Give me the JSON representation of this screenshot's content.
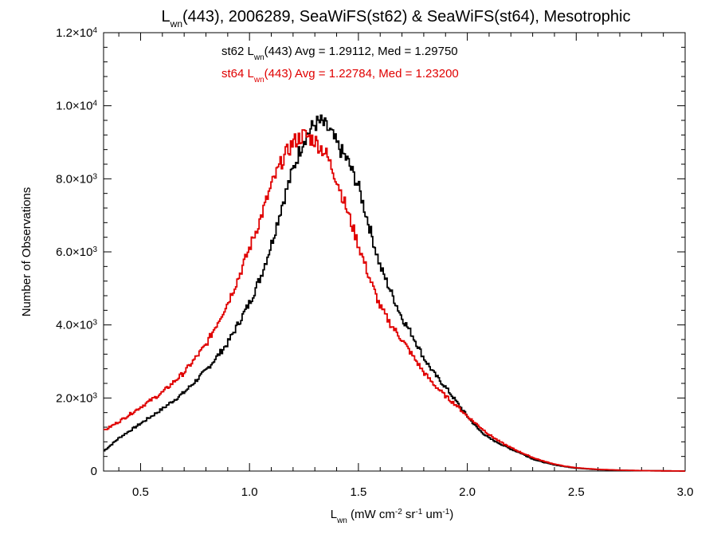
{
  "chart_data": {
    "type": "line",
    "step": true,
    "title_parts": {
      "main": "L",
      "sub": "wn",
      "rest": "(443), 2006289, SeaWiFS(st62) & SeaWiFS(st64), Mesotrophic"
    },
    "xlabel_parts": {
      "main": "L",
      "sub": "wn",
      "rest1": " (mW cm",
      "sup1": "-2",
      "rest2": " sr",
      "sup2": "-1",
      "rest3": " um",
      "sup3": "-1",
      "rest4": ")"
    },
    "ylabel": "Number of Observations",
    "xlim": [
      0.33,
      3.0
    ],
    "ylim": [
      0,
      12000
    ],
    "xticks": [
      {
        "value": 0.5,
        "label": "0.5"
      },
      {
        "value": 1.0,
        "label": "1.0"
      },
      {
        "value": 1.5,
        "label": "1.5"
      },
      {
        "value": 2.0,
        "label": "2.0"
      },
      {
        "value": 2.5,
        "label": "2.5"
      },
      {
        "value": 3.0,
        "label": "3.0"
      }
    ],
    "yticks": [
      {
        "value": 0,
        "mant": "0",
        "exp": ""
      },
      {
        "value": 2000,
        "mant": "2.0×10",
        "exp": "3"
      },
      {
        "value": 4000,
        "mant": "4.0×10",
        "exp": "3"
      },
      {
        "value": 6000,
        "mant": "6.0×10",
        "exp": "3"
      },
      {
        "value": 8000,
        "mant": "8.0×10",
        "exp": "3"
      },
      {
        "value": 10000,
        "mant": "1.0×10",
        "exp": "4"
      },
      {
        "value": 12000,
        "mant": "1.2×10",
        "exp": "4"
      }
    ],
    "series": [
      {
        "name": "st62",
        "color": "#000000",
        "annotation": {
          "pre": "st62 L",
          "sub": "wn",
          "post": "(443) Avg = 1.29112, Med = 1.29750"
        },
        "points": [
          [
            0.33,
            540
          ],
          [
            0.4,
            900
          ],
          [
            0.5,
            1300
          ],
          [
            0.6,
            1700
          ],
          [
            0.7,
            2150
          ],
          [
            0.8,
            2750
          ],
          [
            0.9,
            3500
          ],
          [
            1.0,
            4600
          ],
          [
            1.05,
            5300
          ],
          [
            1.1,
            6200
          ],
          [
            1.15,
            7300
          ],
          [
            1.2,
            8250
          ],
          [
            1.25,
            9100
          ],
          [
            1.3,
            9500
          ],
          [
            1.33,
            9550
          ],
          [
            1.37,
            9300
          ],
          [
            1.4,
            8950
          ],
          [
            1.45,
            8500
          ],
          [
            1.5,
            7800
          ],
          [
            1.55,
            6700
          ],
          [
            1.6,
            5600
          ],
          [
            1.65,
            4900
          ],
          [
            1.7,
            4200
          ],
          [
            1.75,
            3700
          ],
          [
            1.8,
            3100
          ],
          [
            1.85,
            2650
          ],
          [
            1.9,
            2300
          ],
          [
            1.95,
            1900
          ],
          [
            2.0,
            1500
          ],
          [
            2.05,
            1150
          ],
          [
            2.1,
            900
          ],
          [
            2.15,
            750
          ],
          [
            2.2,
            600
          ],
          [
            2.25,
            480
          ],
          [
            2.3,
            330
          ],
          [
            2.35,
            240
          ],
          [
            2.4,
            170
          ],
          [
            2.45,
            120
          ],
          [
            2.5,
            80
          ],
          [
            2.6,
            40
          ],
          [
            2.7,
            20
          ],
          [
            2.8,
            10
          ],
          [
            2.9,
            5
          ],
          [
            3.0,
            0
          ]
        ]
      },
      {
        "name": "st64",
        "color": "#e00000",
        "annotation": {
          "pre": "st64 L",
          "sub": "wn",
          "post": "(443) Avg = 1.22784, Med = 1.23200"
        },
        "points": [
          [
            0.33,
            1100
          ],
          [
            0.4,
            1350
          ],
          [
            0.5,
            1750
          ],
          [
            0.6,
            2150
          ],
          [
            0.7,
            2700
          ],
          [
            0.8,
            3450
          ],
          [
            0.9,
            4600
          ],
          [
            0.95,
            5300
          ],
          [
            1.0,
            6100
          ],
          [
            1.05,
            6900
          ],
          [
            1.1,
            7800
          ],
          [
            1.15,
            8500
          ],
          [
            1.2,
            9000
          ],
          [
            1.25,
            9200
          ],
          [
            1.3,
            9050
          ],
          [
            1.35,
            8700
          ],
          [
            1.4,
            8000
          ],
          [
            1.45,
            7100
          ],
          [
            1.5,
            6200
          ],
          [
            1.55,
            5300
          ],
          [
            1.6,
            4500
          ],
          [
            1.65,
            4000
          ],
          [
            1.7,
            3600
          ],
          [
            1.75,
            3150
          ],
          [
            1.8,
            2700
          ],
          [
            1.85,
            2350
          ],
          [
            1.9,
            2050
          ],
          [
            1.95,
            1800
          ],
          [
            2.0,
            1500
          ],
          [
            2.05,
            1250
          ],
          [
            2.1,
            1000
          ],
          [
            2.15,
            800
          ],
          [
            2.2,
            640
          ],
          [
            2.25,
            500
          ],
          [
            2.3,
            370
          ],
          [
            2.35,
            270
          ],
          [
            2.4,
            190
          ],
          [
            2.45,
            130
          ],
          [
            2.5,
            90
          ],
          [
            2.6,
            45
          ],
          [
            2.7,
            25
          ],
          [
            2.8,
            12
          ],
          [
            2.9,
            5
          ],
          [
            3.0,
            0
          ]
        ]
      }
    ]
  }
}
